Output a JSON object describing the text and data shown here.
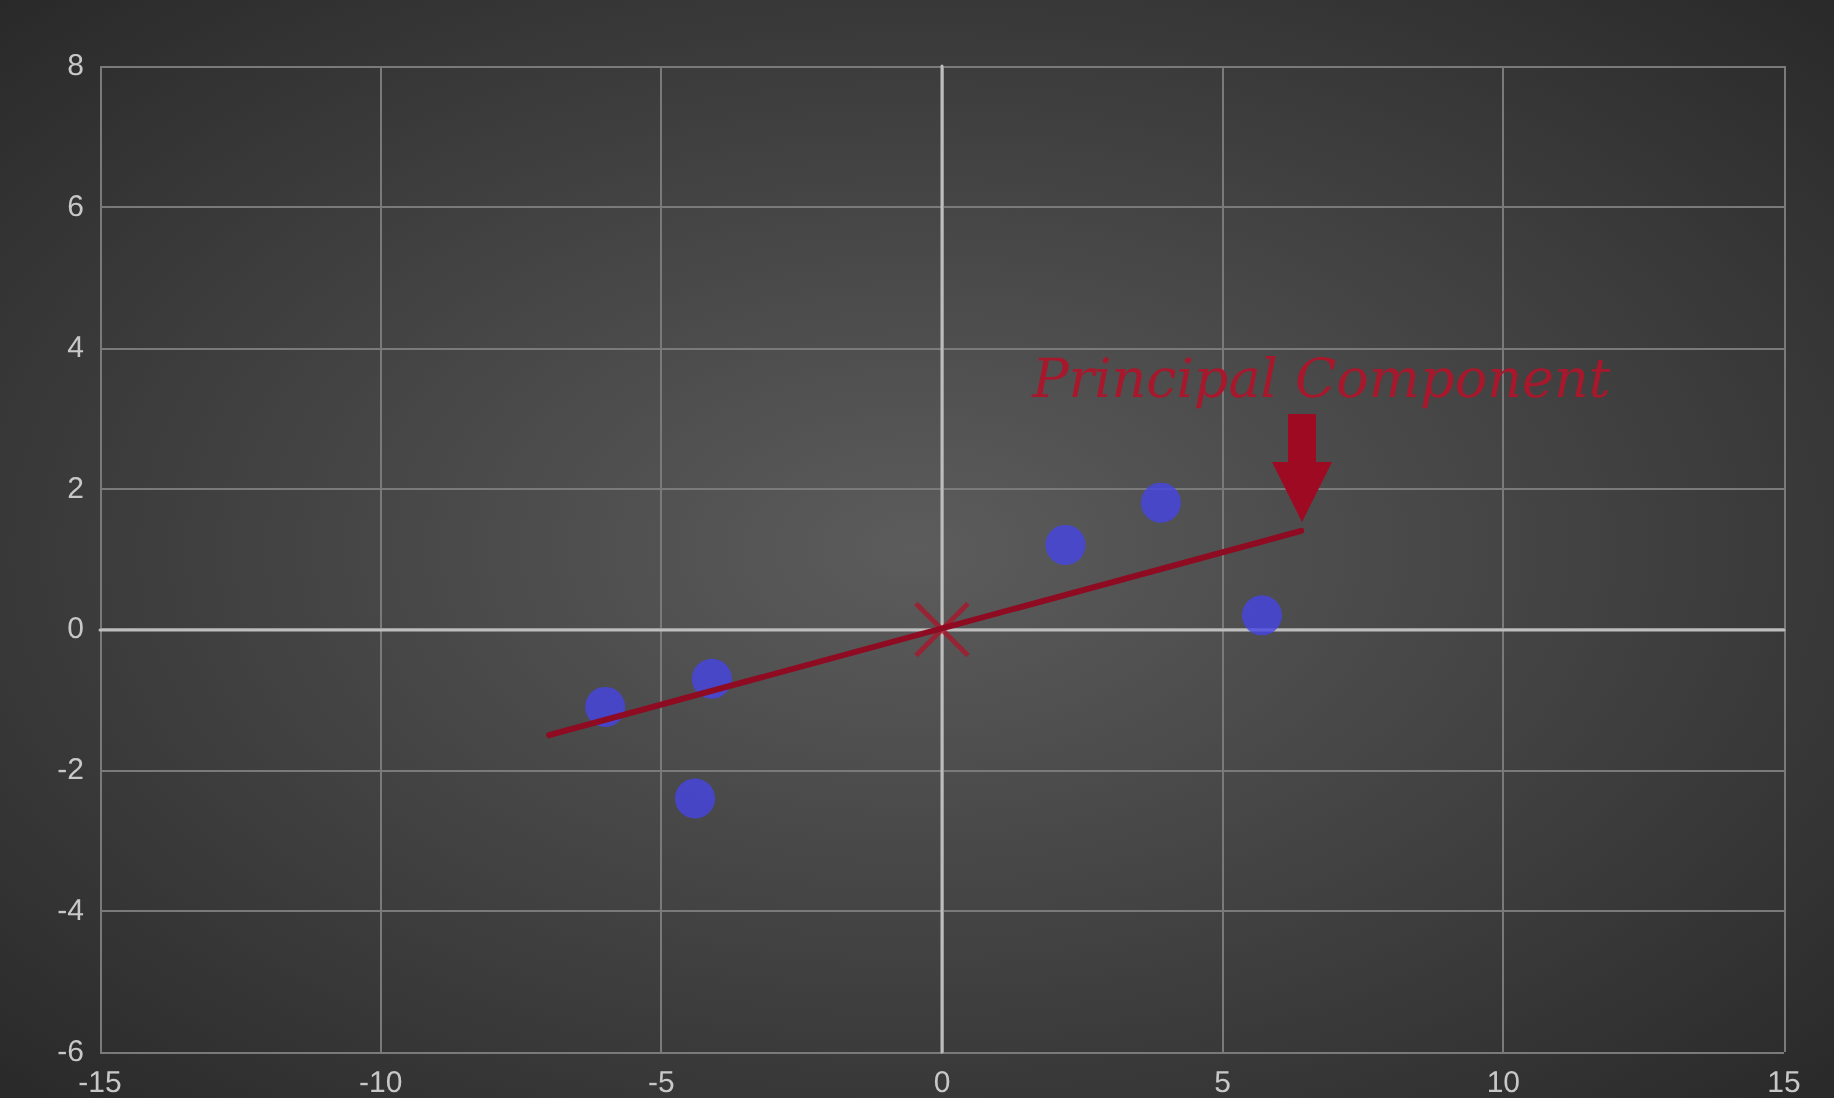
{
  "chart_data": {
    "type": "scatter",
    "xlim": [
      -15,
      15
    ],
    "xticks": [
      -15,
      -10,
      -5,
      0,
      5,
      10,
      15
    ],
    "ylim": [
      -6,
      8
    ],
    "yticks": [
      -6,
      -4,
      -2,
      0,
      2,
      4,
      6,
      8
    ],
    "grid": true,
    "series": [
      {
        "type": "scatter",
        "color": "#4545e6",
        "marker": "circle",
        "x": [
          -6.0,
          -4.1,
          -4.4,
          2.2,
          3.9,
          5.7
        ],
        "values": [
          -1.1,
          -0.7,
          -2.4,
          1.2,
          1.8,
          0.2
        ]
      },
      {
        "type": "line",
        "color": "#8e0b22",
        "marker": "none",
        "line_style": "solid",
        "x": [
          -7.0,
          6.4
        ],
        "values": [
          -1.5,
          1.4
        ]
      },
      {
        "type": "scatter",
        "color": "#a8182c",
        "marker": "cross",
        "x": [
          0
        ],
        "values": [
          0
        ]
      }
    ],
    "annotations": [
      {
        "text": "Principal Component",
        "x": 6.4,
        "y": 1.4
      }
    ]
  }
}
